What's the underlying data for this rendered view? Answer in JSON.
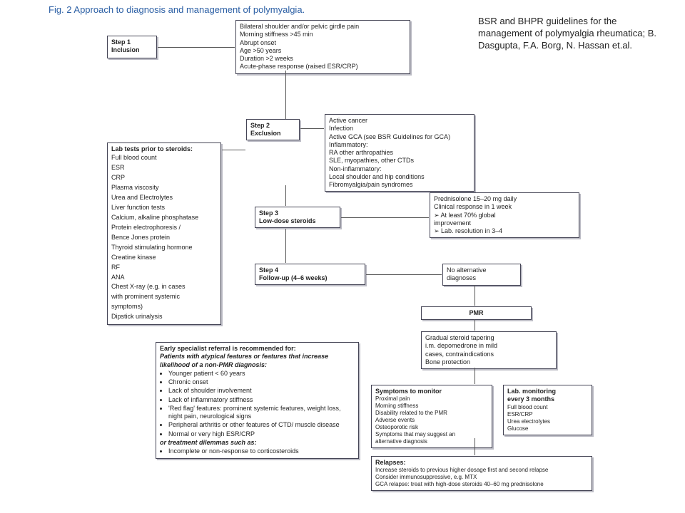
{
  "caption": "Fig. 2  Approach to diagnosis and management of polymyalgia.",
  "citation": "BSR and BHPR guidelines for the management of polymyalgia rheumatica; B. Dasgupta, F.A. Borg, N. Hassan et.al.",
  "step1": {
    "label": "Step 1",
    "sub": "Inclusion",
    "body": "Bilateral shoulder and/or pelvic girdle pain\nMorning stiffness >45 min\nAbrupt onset\nAge >50 years\nDuration >2 weeks\nAcute-phase response (raised ESR/CRP)"
  },
  "step2": {
    "label": "Step 2",
    "sub": "Exclusion"
  },
  "step2body": "Active cancer\nInfection\nActive GCA (see BSR Guidelines for GCA)\nInflammatory:\nRA other arthropathies\nSLE, myopathies, other CTDs\nNon-inflammatory:\nLocal shoulder and hip conditions\nFibromyalgia/pain syndromes",
  "labtests": {
    "title": "Lab tests prior to steroids:",
    "items": "Full blood count\nESR\nCRP\nPlasma viscosity\nUrea and Electrolytes\nLiver function tests\nCalcium, alkaline phosphatase\nProtein electrophoresis /\nBence Jones protein\nThyroid stimulating hormone\nCreatine kinase\nRF\nANA\nChest X-ray (e.g. in cases\nwith prominent systemic\nsymptoms)\nDipstick urinalysis"
  },
  "step3": {
    "label": "Step 3",
    "sub": "Low-dose steroids"
  },
  "step3body": "Prednisolone 15–20 mg daily\nClinical response in 1 week\n  ➢  At least 70% global\n      improvement\n  ➢  Lab. resolution in 3–4",
  "step4": {
    "label": "Step 4",
    "sub": "Follow-up (4–6 weeks)"
  },
  "step4body": "No alternative\ndiagnoses",
  "pmr": "PMR",
  "tapering": "Gradual steroid tapering\ni.m. depomedrone in mild\ncases, contraindications\nBone protection",
  "referral": {
    "title1": "Early specialist referral is recommended for:",
    "title2": "Patients with atypical features or features that increase likelihood of a non-PMR diagnosis:",
    "bullets": [
      "Younger patient < 60 years",
      "Chronic onset",
      "Lack of shoulder involvement",
      "Lack of inflammatory stiffness",
      "'Red flag' features: prominent systemic features, weight loss, night pain, neurological signs",
      "Peripheral arthritis or other features of CTD/ muscle disease",
      "Normal or very high ESR/CRP"
    ],
    "title3": "or treatment dilemmas such as:",
    "bullets2": [
      "Incomplete or non-response to corticosteroids"
    ]
  },
  "symptoms": {
    "title": "Symptoms to monitor",
    "body": "Proximal pain\nMorning stiffness\nDisability related to the PMR\nAdverse events\nOsteoporotic risk\nSymptoms that may suggest an\nalternative diagnosis"
  },
  "labmon": {
    "title": "Lab. monitoring\nevery 3 months",
    "body": "Full blood count\nESR/CRP\nUrea electrolytes\nGlucose"
  },
  "relapses": {
    "title": "Relapses:",
    "body": "Increase steroids to previous higher dosage first and second relapse\nConsider immunosuppressive, e.g. MTX\nGCA relapse: treat with high-dose steroids 40–60 mg prednisolone"
  },
  "layout": {
    "caption_color": "#2a5ea4",
    "box_border": "#445",
    "shadow": "#bcbcc5"
  }
}
